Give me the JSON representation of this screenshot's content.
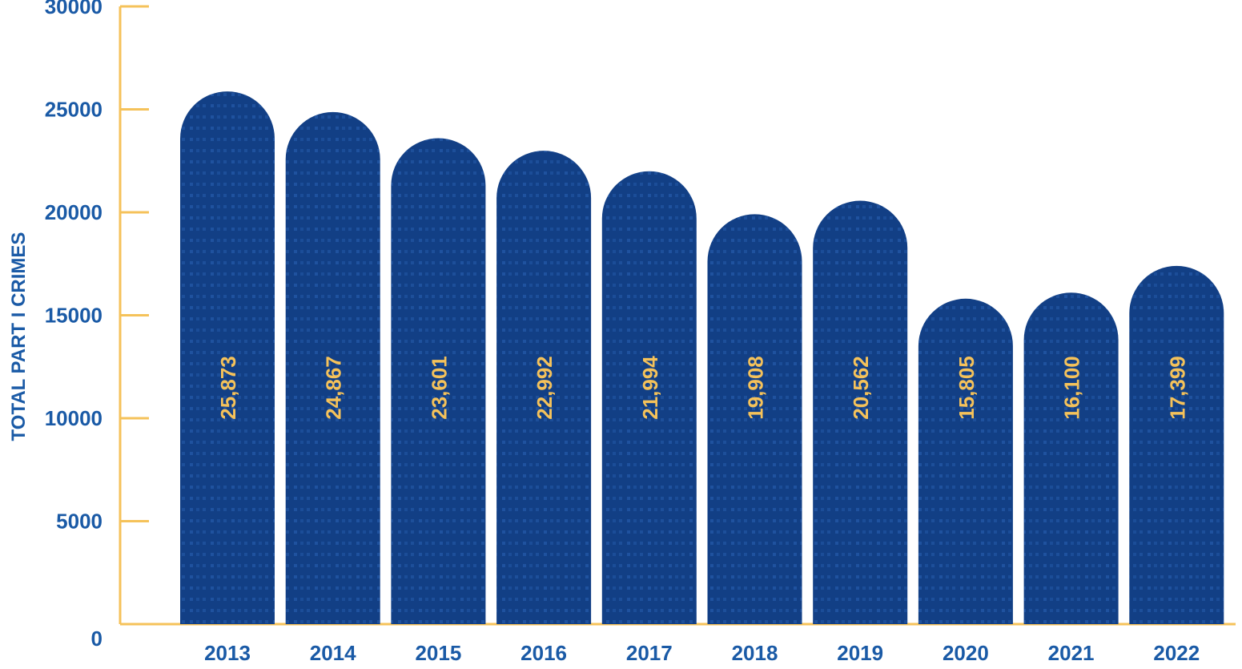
{
  "chart_data": {
    "type": "bar",
    "ylabel": "TOTAL PART I CRIMES",
    "xlabel": "",
    "ylim": [
      0,
      30000
    ],
    "yticks": [
      0,
      5000,
      10000,
      15000,
      20000,
      25000,
      30000
    ],
    "ytick_labels": [
      "0",
      "5000",
      "10000",
      "15000",
      "20000",
      "25000",
      "30000"
    ],
    "categories": [
      "2013",
      "2014",
      "2015",
      "2016",
      "2017",
      "2018",
      "2019",
      "2020",
      "2021",
      "2022"
    ],
    "values": [
      25873,
      24867,
      23601,
      22992,
      21994,
      19908,
      20562,
      15805,
      16100,
      17399
    ],
    "value_labels": [
      "25,873",
      "24,867",
      "23,601",
      "22,992",
      "21,994",
      "19,908",
      "20,562",
      "15,805",
      "16,100",
      "17,399"
    ],
    "grid": false,
    "colors": {
      "axis": "#f5c25a",
      "text": "#1a5aa6",
      "value_label": "#f5c25a",
      "bar_top": "#0c1a33",
      "bar_bottom": "#1755b0"
    }
  }
}
